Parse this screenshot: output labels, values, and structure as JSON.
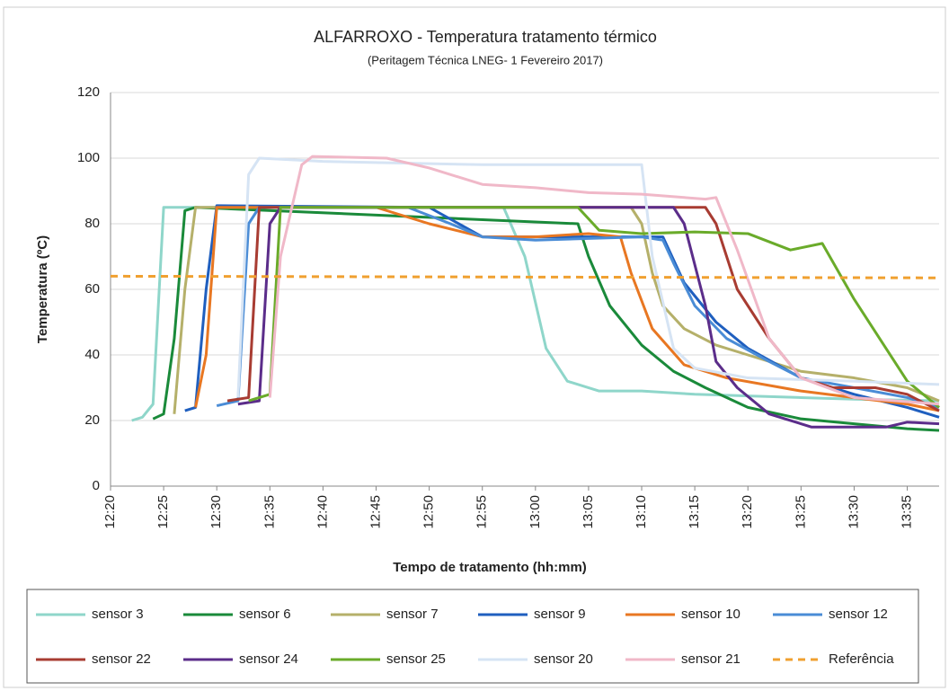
{
  "chart_data": {
    "type": "line",
    "title": "ALFARROXO - Temperatura tratamento térmico",
    "subtitle": "(Peritagem Técnica LNEG- 1 Fevereiro 2017)",
    "x_label": "Tempo de tratamento (hh:mm)",
    "y_label": "Temperatura (ºC)",
    "xlim": [
      "12:20",
      "13:38"
    ],
    "xticks": [
      "12:20",
      "12:25",
      "12:30",
      "12:35",
      "12:40",
      "12:45",
      "12:50",
      "12:55",
      "13:00",
      "13:05",
      "13:10",
      "13:15",
      "13:20",
      "13:25",
      "13:30",
      "13:35"
    ],
    "ylim": [
      0,
      120
    ],
    "yticks": [
      0,
      20,
      40,
      60,
      80,
      100,
      120
    ],
    "grid": true,
    "series": [
      {
        "name": "sensor 3",
        "color": "#8fd6ca",
        "x": [
          "12:22",
          "12:23",
          "12:24",
          "12:25",
          "12:57",
          "12:59",
          "13:01",
          "13:03",
          "13:06",
          "13:10",
          "13:15",
          "13:20",
          "13:25",
          "13:30",
          "13:38"
        ],
        "values": [
          20,
          21,
          25,
          85,
          85,
          70,
          42,
          32,
          29,
          29,
          28,
          27.5,
          27,
          26.5,
          26
        ]
      },
      {
        "name": "sensor 6",
        "color": "#1a8a3a",
        "x": [
          "12:24",
          "12:25",
          "12:26",
          "12:27",
          "12:28",
          "13:04",
          "13:05",
          "13:07",
          "13:10",
          "13:13",
          "13:16",
          "13:20",
          "13:25",
          "13:30",
          "13:35",
          "13:38"
        ],
        "values": [
          20.5,
          22,
          45,
          84,
          85,
          80,
          70,
          55,
          43,
          35,
          30,
          24,
          20.5,
          19,
          17.5,
          17
        ]
      },
      {
        "name": "sensor 7",
        "color": "#b5b06a",
        "x": [
          "12:26",
          "12:27",
          "12:28",
          "13:09",
          "13:10",
          "13:11",
          "13:12",
          "13:14",
          "13:17",
          "13:20",
          "13:25",
          "13:30",
          "13:35",
          "13:38"
        ],
        "values": [
          22,
          60,
          85,
          85,
          80,
          65,
          55,
          48,
          43,
          40,
          35,
          33,
          30,
          26
        ]
      },
      {
        "name": "sensor 9",
        "color": "#1f5fbf",
        "x": [
          "12:27",
          "12:28",
          "12:29",
          "12:30",
          "12:50",
          "12:55",
          "13:12",
          "13:14",
          "13:17",
          "13:20",
          "13:25",
          "13:30",
          "13:35",
          "13:38"
        ],
        "values": [
          23,
          24,
          60,
          85.5,
          85,
          76,
          76,
          62,
          50,
          42,
          33,
          28,
          24,
          21
        ]
      },
      {
        "name": "sensor 10",
        "color": "#e87722",
        "x": [
          "12:28",
          "12:29",
          "12:30",
          "12:45",
          "12:50",
          "12:55",
          "13:00",
          "13:05",
          "13:08",
          "13:09",
          "13:11",
          "13:14",
          "13:18",
          "13:25",
          "13:30",
          "13:35",
          "13:38"
        ],
        "values": [
          24,
          40,
          85,
          85,
          80,
          76,
          76,
          77,
          76,
          65,
          48,
          37,
          33,
          29,
          27,
          25,
          23
        ]
      },
      {
        "name": "sensor 12",
        "color": "#4a8cd6",
        "x": [
          "12:30",
          "12:32",
          "12:33",
          "12:34",
          "12:48",
          "12:52",
          "12:55",
          "13:00",
          "13:05",
          "13:10",
          "13:12",
          "13:13",
          "13:15",
          "13:18",
          "13:22",
          "13:25",
          "13:30",
          "13:35",
          "13:38"
        ],
        "values": [
          24.5,
          26,
          80,
          85,
          85,
          80,
          76,
          75,
          75.5,
          76,
          75,
          68,
          55,
          45,
          38,
          33,
          30,
          27,
          24
        ]
      },
      {
        "name": "sensor 22",
        "color": "#a83c32",
        "x": [
          "12:31",
          "12:33",
          "12:34",
          "13:16",
          "13:17",
          "13:19",
          "13:22",
          "13:25",
          "13:28",
          "13:32",
          "13:35",
          "13:38"
        ],
        "values": [
          26,
          27,
          85,
          85,
          80,
          60,
          45,
          33,
          30,
          30,
          28,
          23
        ]
      },
      {
        "name": "sensor 24",
        "color": "#5b2d8a",
        "x": [
          "12:32",
          "12:34",
          "12:35",
          "12:36",
          "13:13",
          "13:14",
          "13:16",
          "13:17",
          "13:19",
          "13:22",
          "13:26",
          "13:33",
          "13:35",
          "13:38"
        ],
        "values": [
          25,
          26,
          80,
          85,
          85,
          80,
          55,
          38,
          30,
          22,
          18,
          18,
          19.5,
          19
        ]
      },
      {
        "name": "sensor 25",
        "color": "#6aab2a",
        "x": [
          "12:33",
          "12:35",
          "12:36",
          "13:04",
          "13:06",
          "13:10",
          "13:15",
          "13:20",
          "13:24",
          "13:27",
          "13:30",
          "13:33",
          "13:35",
          "13:38"
        ],
        "values": [
          26,
          28,
          85,
          85,
          78,
          77,
          77.5,
          77,
          72,
          74,
          57,
          42,
          32,
          24
        ]
      },
      {
        "name": "sensor 20",
        "color": "#d6e4f4",
        "x": [
          "12:32",
          "12:33",
          "12:34",
          "12:40",
          "12:55",
          "13:10",
          "13:11",
          "13:13",
          "13:15",
          "13:20",
          "13:30",
          "13:38"
        ],
        "values": [
          27,
          95,
          100,
          99,
          98,
          98,
          70,
          42,
          36,
          33,
          32,
          31
        ]
      },
      {
        "name": "sensor 21",
        "color": "#f0b8c8",
        "x": [
          "12:35",
          "12:36",
          "12:38",
          "12:39",
          "12:46",
          "12:50",
          "12:55",
          "13:00",
          "13:05",
          "13:10",
          "13:16",
          "13:17",
          "13:19",
          "13:22",
          "13:25",
          "13:30",
          "13:38"
        ],
        "values": [
          27,
          70,
          98,
          100.5,
          100,
          97,
          92,
          91,
          89.5,
          89,
          87.5,
          88,
          72,
          45,
          33,
          27,
          25
        ]
      },
      {
        "name": "Referência",
        "color": "#f0a030",
        "linestyle": "dashed",
        "x": [
          "12:20",
          "13:38"
        ],
        "values": [
          64,
          63.5
        ]
      }
    ]
  }
}
